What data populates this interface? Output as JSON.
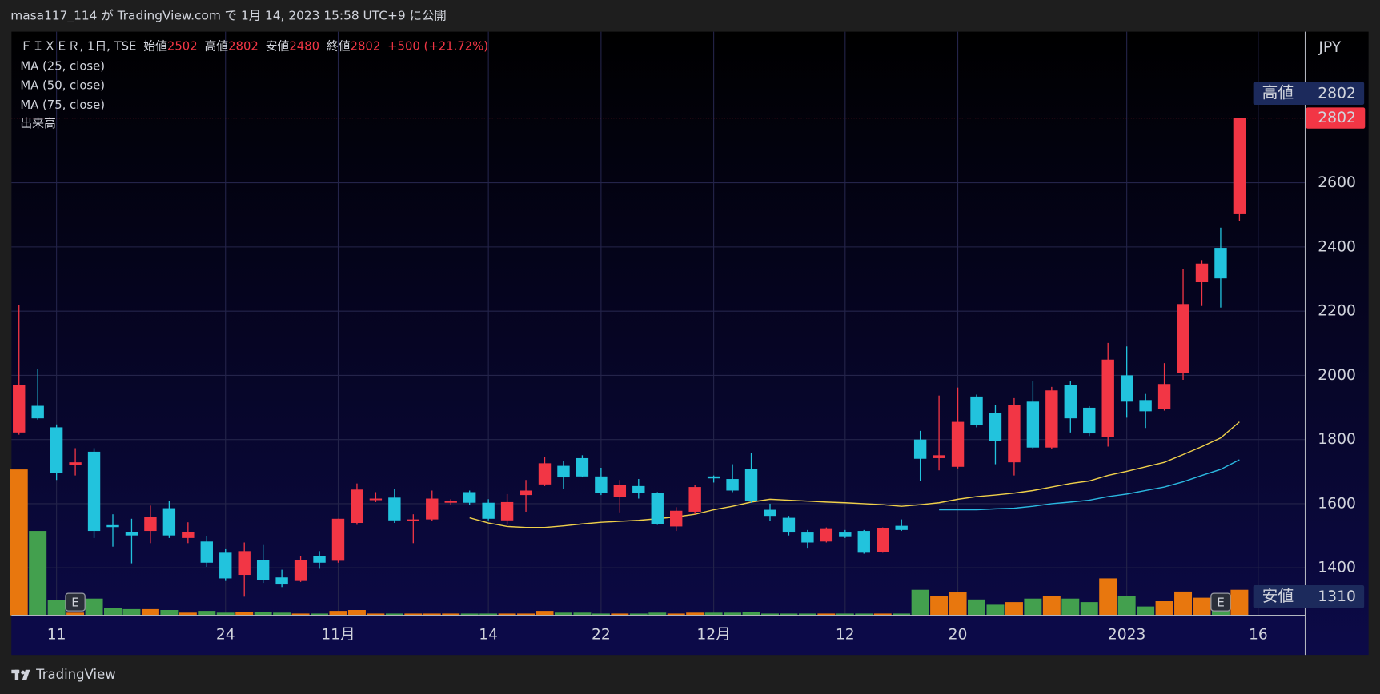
{
  "header": "masa117_114 が TradingView.com で 1月 14, 2023 15:58 UTC+9 に公開",
  "footer": "TradingView",
  "chart_data": {
    "type": "candlestick",
    "title": "ＦＩＸＥＲ, 1日, TSE",
    "ohlc_labels": {
      "open": "始値",
      "high": "高値",
      "low": "安値",
      "close": "終値"
    },
    "change_label": "+500 (+21.72%)",
    "volume_label": "出来高",
    "currency": "JPY",
    "up_color": "#f23645",
    "down_color": "#22c3dd",
    "volume_up_color": "#e8770e",
    "volume_down_color": "#43a04e",
    "open": [
      1822,
      1905,
      1838,
      1720,
      1762,
      1533,
      1512,
      1515,
      1586,
      1493,
      1482,
      1447,
      1378,
      1425,
      1370,
      1359,
      1436,
      1422,
      1540,
      1611,
      1619,
      1545,
      1551,
      1603,
      1636,
      1603,
      1548,
      1627,
      1660,
      1718,
      1742,
      1685,
      1622,
      1655,
      1633,
      1529,
      1575,
      1685,
      1677,
      1707,
      1581,
      1556,
      1510,
      1482,
      1510,
      1515,
      1449,
      1531,
      1800,
      1742,
      1715,
      1934,
      1882,
      1729,
      1918,
      1775,
      1970,
      1899,
      1808,
      2000,
      1923,
      1896,
      2008,
      2290,
      2397,
      2502
    ],
    "high": [
      2220,
      2020,
      1847,
      1773,
      1773,
      1567,
      1553,
      1594,
      1608,
      1542,
      1499,
      1458,
      1479,
      1471,
      1394,
      1436,
      1452,
      1553,
      1663,
      1636,
      1647,
      1567,
      1641,
      1614,
      1641,
      1614,
      1630,
      1674,
      1745,
      1734,
      1751,
      1712,
      1674,
      1677,
      1636,
      1589,
      1658,
      1688,
      1723,
      1759,
      1600,
      1562,
      1518,
      1526,
      1518,
      1518,
      1526,
      1551,
      1827,
      1937,
      1962,
      1940,
      1907,
      1929,
      1981,
      1964,
      1981,
      1904,
      2101,
      2090,
      1942,
      2038,
      2332,
      2359,
      2460,
      2802
    ],
    "low": [
      1815,
      1862,
      1674,
      1688,
      1493,
      1466,
      1414,
      1477,
      1493,
      1477,
      1403,
      1359,
      1310,
      1353,
      1340,
      1356,
      1397,
      1416,
      1534,
      1605,
      1540,
      1477,
      1545,
      1597,
      1597,
      1548,
      1534,
      1575,
      1655,
      1647,
      1682,
      1627,
      1573,
      1616,
      1534,
      1515,
      1567,
      1666,
      1636,
      1603,
      1545,
      1501,
      1460,
      1479,
      1493,
      1444,
      1447,
      1515,
      1671,
      1704,
      1710,
      1838,
      1723,
      1688,
      1770,
      1770,
      1822,
      1811,
      1778,
      1868,
      1836,
      1890,
      1986,
      2216,
      2211,
      2480
    ],
    "close": [
      1970,
      1866,
      1696,
      1729,
      1515,
      1527,
      1501,
      1559,
      1501,
      1512,
      1416,
      1367,
      1452,
      1362,
      1348,
      1425,
      1416,
      1553,
      1644,
      1616,
      1548,
      1551,
      1616,
      1608,
      1603,
      1553,
      1605,
      1641,
      1726,
      1682,
      1685,
      1633,
      1658,
      1633,
      1537,
      1578,
      1652,
      1679,
      1641,
      1608,
      1562,
      1510,
      1479,
      1521,
      1496,
      1447,
      1523,
      1518,
      1740,
      1751,
      1855,
      1844,
      1795,
      1907,
      1775,
      1953,
      1866,
      1819,
      2049,
      1918,
      1888,
      1973,
      2222,
      2348,
      2302,
      2802
    ],
    "volume": [
      166,
      96,
      17,
      3,
      19,
      8,
      7,
      7,
      6,
      3,
      5,
      3,
      4,
      4,
      3,
      2,
      2,
      5,
      6,
      2,
      2,
      2,
      2,
      2,
      2,
      2,
      2,
      2,
      5,
      3,
      3,
      2,
      2,
      2,
      3,
      2,
      3,
      3,
      3,
      4,
      2,
      2,
      2,
      2,
      2,
      2,
      2,
      2,
      29,
      22,
      26,
      18,
      12,
      15,
      19,
      22,
      19,
      15,
      42,
      22,
      10,
      16,
      27,
      20,
      17,
      29
    ],
    "series": [
      {
        "name": "MA (25, close)",
        "color": "#f0d04a",
        "values": [
          null,
          null,
          null,
          null,
          null,
          null,
          null,
          null,
          null,
          null,
          null,
          null,
          null,
          null,
          null,
          null,
          null,
          null,
          null,
          null,
          null,
          null,
          null,
          null,
          1556,
          1540,
          1529,
          1526,
          1526,
          1531,
          1537,
          1542,
          1545,
          1548,
          1553,
          1559,
          1567,
          1581,
          1592,
          1605,
          1614,
          1611,
          1608,
          1605,
          1603,
          1600,
          1597,
          1592,
          1597,
          1603,
          1614,
          1622,
          1627,
          1633,
          1641,
          1652,
          1663,
          1671,
          1688,
          1701,
          1715,
          1729,
          1753,
          1778,
          1805,
          1855
        ]
      },
      {
        "name": "MA (50, close)",
        "color": "#2bb8e0",
        "values": [
          null,
          null,
          null,
          null,
          null,
          null,
          null,
          null,
          null,
          null,
          null,
          null,
          null,
          null,
          null,
          null,
          null,
          null,
          null,
          null,
          null,
          null,
          null,
          null,
          null,
          null,
          null,
          null,
          null,
          null,
          null,
          null,
          null,
          null,
          null,
          null,
          null,
          null,
          null,
          null,
          null,
          null,
          null,
          null,
          null,
          null,
          null,
          null,
          null,
          1581,
          1581,
          1581,
          1584,
          1586,
          1592,
          1600,
          1605,
          1611,
          1622,
          1630,
          1641,
          1652,
          1668,
          1688,
          1707,
          1737
        ]
      },
      {
        "name": "MA (75, close)",
        "color": "#e040fb",
        "values": [
          null,
          null,
          null,
          null,
          null,
          null,
          null,
          null,
          null,
          null,
          null,
          null,
          null,
          null,
          null,
          null,
          null,
          null,
          null,
          null,
          null,
          null,
          null,
          null,
          null,
          null,
          null,
          null,
          null,
          null,
          null,
          null,
          null,
          null,
          null,
          null,
          null,
          null,
          null,
          null,
          null,
          null,
          null,
          null,
          null,
          null,
          null,
          null,
          null,
          null,
          null,
          null,
          null,
          null,
          null,
          null,
          null,
          null,
          null,
          null,
          null,
          null,
          null,
          null,
          null,
          null
        ]
      }
    ],
    "events": [
      {
        "index": 3,
        "label": "E"
      },
      {
        "index": 64,
        "label": "E"
      }
    ],
    "xlim": [
      -0.4,
      68.5
    ],
    "xticks": [
      {
        "value": 2,
        "label": "11"
      },
      {
        "value": 11,
        "label": "24"
      },
      {
        "value": 17,
        "label": "11月"
      },
      {
        "value": 25,
        "label": "14"
      },
      {
        "value": 31,
        "label": "22"
      },
      {
        "value": 37,
        "label": "12月"
      },
      {
        "value": 44,
        "label": "12"
      },
      {
        "value": 50,
        "label": "20"
      },
      {
        "value": 59,
        "label": "2023"
      },
      {
        "value": 66,
        "label": "16"
      }
    ],
    "ylim": [
      1252,
      3071
    ],
    "yticks": [
      1400,
      1600,
      1800,
      2000,
      2200,
      2400,
      2600
    ],
    "grid": true,
    "last_price": 2802,
    "high_marker": {
      "label": "高値",
      "value": 2802
    },
    "low_marker": {
      "label": "安値",
      "value": 1310
    }
  }
}
